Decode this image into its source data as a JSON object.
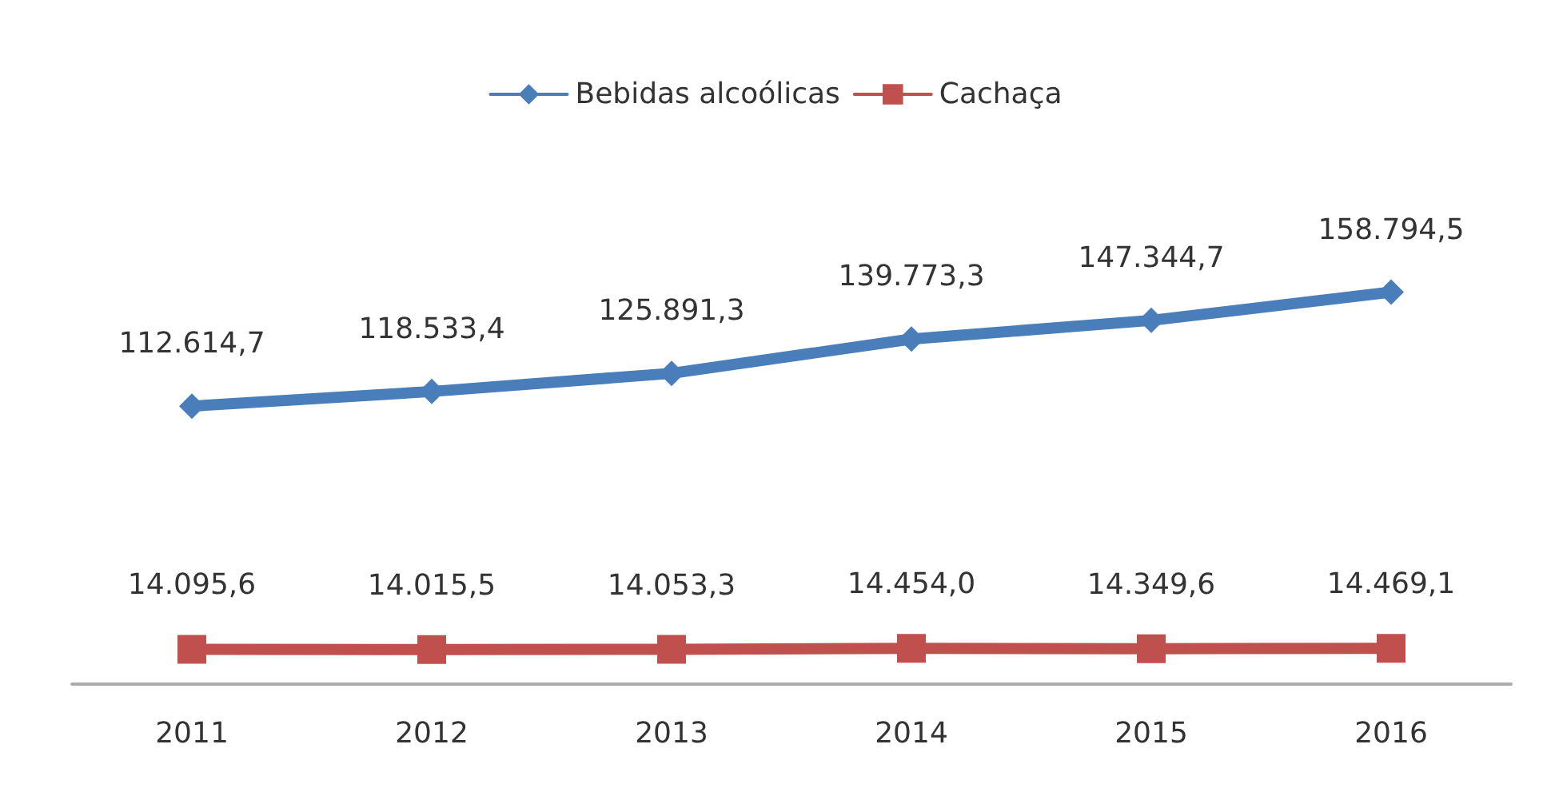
{
  "chart_data": {
    "type": "line",
    "categories": [
      "2011",
      "2012",
      "2013",
      "2014",
      "2015",
      "2016"
    ],
    "series": [
      {
        "name": "Bebidas alcoólicas",
        "color": "#4a7ebb",
        "marker": "diamond",
        "values": [
          112614.7,
          118533.4,
          125891.3,
          139773.3,
          147344.7,
          158794.5
        ],
        "value_labels": [
          "112.614,7",
          "118.533,4",
          "125.891,3",
          "139.773,3",
          "147.344,7",
          "158.794,5"
        ]
      },
      {
        "name": "Cachaça",
        "color": "#c0504d",
        "marker": "square",
        "values": [
          14095.6,
          14015.5,
          14053.3,
          14454.0,
          14349.6,
          14469.1
        ],
        "value_labels": [
          "14.095,6",
          "14.015,5",
          "14.053,3",
          "14.454,0",
          "14.349,6",
          "14.469,1"
        ]
      }
    ],
    "legend": "top",
    "grid": false,
    "tick_labels": "x"
  }
}
